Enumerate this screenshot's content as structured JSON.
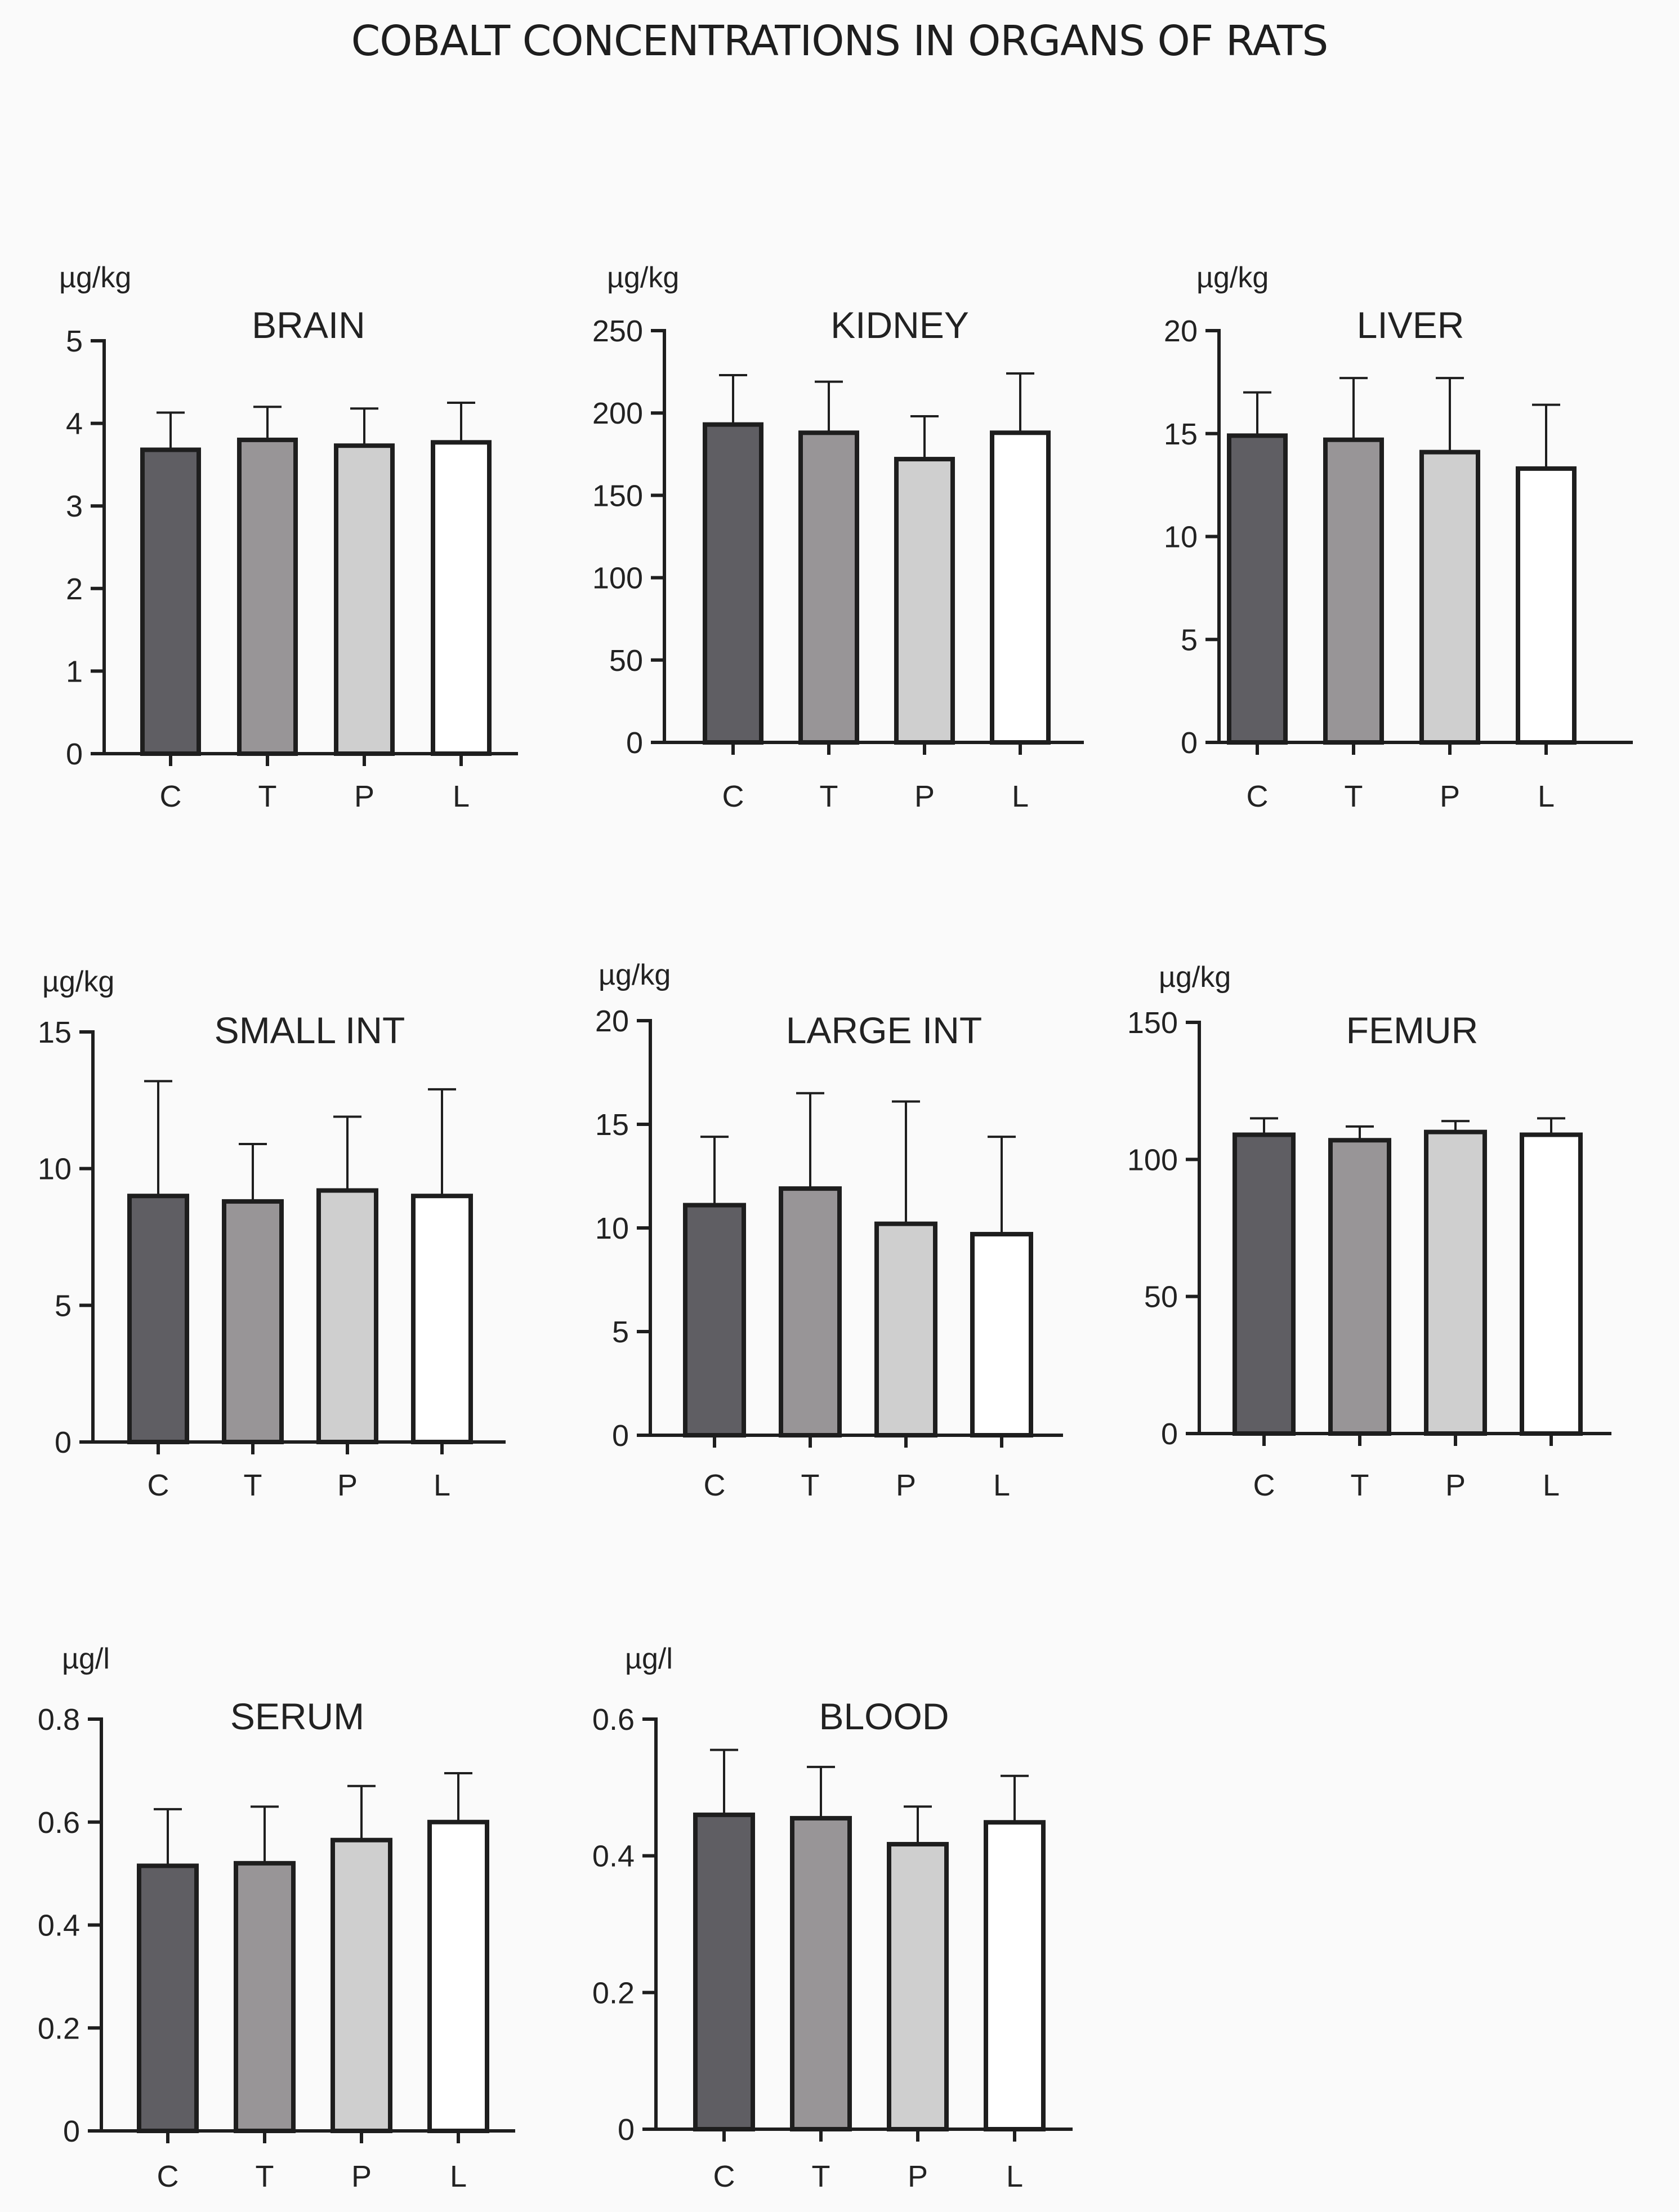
{
  "title": "COBALT CONCENTRATIONS IN ORGANS OF RATS",
  "colors": {
    "C": "#5f5e63",
    "T": "#989597",
    "P": "#cfcfcf",
    "L": "#ffffff",
    "axis": "#1e1e1e"
  },
  "chart_data": [
    {
      "type": "bar",
      "title": "BRAIN",
      "ylabel": "µg/kg",
      "categories": [
        "C",
        "T",
        "P",
        "L"
      ],
      "values": [
        3.68,
        3.8,
        3.73,
        3.77
      ],
      "errors": [
        0.45,
        0.4,
        0.45,
        0.48
      ],
      "ylim": [
        0,
        5
      ],
      "yticks": [
        0,
        1,
        2,
        3,
        4,
        5
      ],
      "ytick_labels": [
        "0",
        "1",
        "2",
        "3",
        "4",
        "5"
      ]
    },
    {
      "type": "bar",
      "title": "KIDNEY",
      "ylabel": "µg/kg",
      "categories": [
        "C",
        "T",
        "P",
        "L"
      ],
      "values": [
        193,
        188,
        172,
        188
      ],
      "errors": [
        30,
        31,
        26,
        36
      ],
      "ylim": [
        0,
        250
      ],
      "yticks": [
        0,
        50,
        100,
        150,
        200,
        250
      ],
      "ytick_labels": [
        "0",
        "50",
        "100",
        "150",
        "200",
        "250"
      ]
    },
    {
      "type": "bar",
      "title": "LIVER",
      "ylabel": "µg/kg",
      "categories": [
        "C",
        "T",
        "P",
        "L"
      ],
      "values": [
        14.9,
        14.7,
        14.1,
        13.3
      ],
      "errors": [
        2.1,
        3.0,
        3.6,
        3.1
      ],
      "ylim": [
        0,
        20
      ],
      "yticks": [
        0,
        5,
        10,
        15,
        20
      ],
      "ytick_labels": [
        "0",
        "5",
        "10",
        "15",
        "20"
      ]
    },
    {
      "type": "bar",
      "title": "SMALL INT",
      "ylabel": "µg/kg",
      "categories": [
        "C",
        "T",
        "P",
        "L"
      ],
      "values": [
        9.0,
        8.8,
        9.2,
        9.0
      ],
      "errors": [
        4.2,
        2.1,
        2.7,
        3.9
      ],
      "ylim": [
        0,
        15
      ],
      "yticks": [
        0,
        5,
        10,
        15
      ],
      "ytick_labels": [
        "0",
        "5",
        "10",
        "15"
      ]
    },
    {
      "type": "bar",
      "title": "LARGE INT",
      "ylabel": "µg/kg",
      "categories": [
        "C",
        "T",
        "P",
        "L"
      ],
      "values": [
        11.1,
        11.9,
        10.2,
        9.7
      ],
      "errors": [
        3.3,
        4.6,
        5.9,
        4.7
      ],
      "ylim": [
        0,
        20
      ],
      "yticks": [
        0,
        5,
        10,
        15,
        20
      ],
      "ytick_labels": [
        "0",
        "5",
        "10",
        "15",
        "20"
      ]
    },
    {
      "type": "bar",
      "title": "FEMUR",
      "ylabel": "µg/kg",
      "categories": [
        "C",
        "T",
        "P",
        "L"
      ],
      "values": [
        109,
        107,
        110,
        109
      ],
      "errors": [
        6,
        5,
        4,
        6
      ],
      "ylim": [
        0,
        150
      ],
      "yticks": [
        0,
        50,
        100,
        150
      ],
      "ytick_labels": [
        "0",
        "50",
        "100",
        "150"
      ]
    },
    {
      "type": "bar",
      "title": "SERUM",
      "ylabel": "µg/l",
      "categories": [
        "C",
        "T",
        "P",
        "L"
      ],
      "values": [
        0.515,
        0.52,
        0.565,
        0.6
      ],
      "errors": [
        0.11,
        0.11,
        0.105,
        0.095
      ],
      "ylim": [
        0,
        0.8
      ],
      "yticks": [
        0,
        0.2,
        0.4,
        0.6,
        0.8
      ],
      "ytick_labels": [
        "0",
        "0.2",
        "0.4",
        "0.6",
        "0.8"
      ]
    },
    {
      "type": "bar",
      "title": "BLOOD",
      "ylabel": "µg/l",
      "categories": [
        "C",
        "T",
        "P",
        "L"
      ],
      "values": [
        0.46,
        0.455,
        0.417,
        0.449
      ],
      "errors": [
        0.095,
        0.075,
        0.055,
        0.068
      ],
      "ylim": [
        0,
        0.6
      ],
      "yticks": [
        0,
        0.2,
        0.4,
        0.6
      ],
      "ytick_labels": [
        "0",
        "0.2",
        "0.4",
        "0.6"
      ]
    }
  ]
}
